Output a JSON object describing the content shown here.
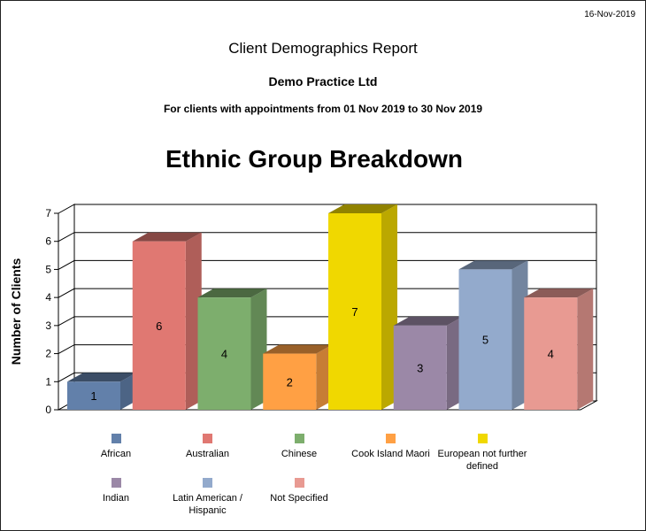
{
  "header": {
    "date": "16-Nov-2019",
    "title": "Client Demographics Report",
    "practice": "Demo Practice Ltd",
    "subtitle": "For clients with appointments from 01 Nov 2019 to 30 Nov 2019"
  },
  "chart_data": {
    "type": "bar",
    "title": "Ethnic Group Breakdown",
    "xlabel": "",
    "ylabel": "Number of Clients",
    "ylim": [
      0,
      7
    ],
    "yticks": [
      0,
      1,
      2,
      3,
      4,
      5,
      6,
      7
    ],
    "grid": true,
    "three_d": true,
    "data_labels": true,
    "legend_position": "bottom",
    "categories": [
      "African",
      "Australian",
      "Chinese",
      "Cook Island Maori",
      "European not further defined",
      "Indian",
      "Latin American / Hispanic",
      "Not Specified"
    ],
    "values": [
      1,
      6,
      4,
      2,
      7,
      3,
      5,
      4
    ],
    "colors": [
      "#6280aa",
      "#e07872",
      "#7dae6d",
      "#ffa044",
      "#f0d800",
      "#9b88a7",
      "#93aacc",
      "#e89a92"
    ],
    "legend_labels": [
      [
        "African"
      ],
      [
        "Australian"
      ],
      [
        "Chinese"
      ],
      [
        "Cook Island Maori"
      ],
      [
        "European not further",
        "defined"
      ],
      [
        "Indian"
      ],
      [
        "Latin American /",
        "Hispanic"
      ],
      [
        "Not Specified"
      ]
    ]
  }
}
